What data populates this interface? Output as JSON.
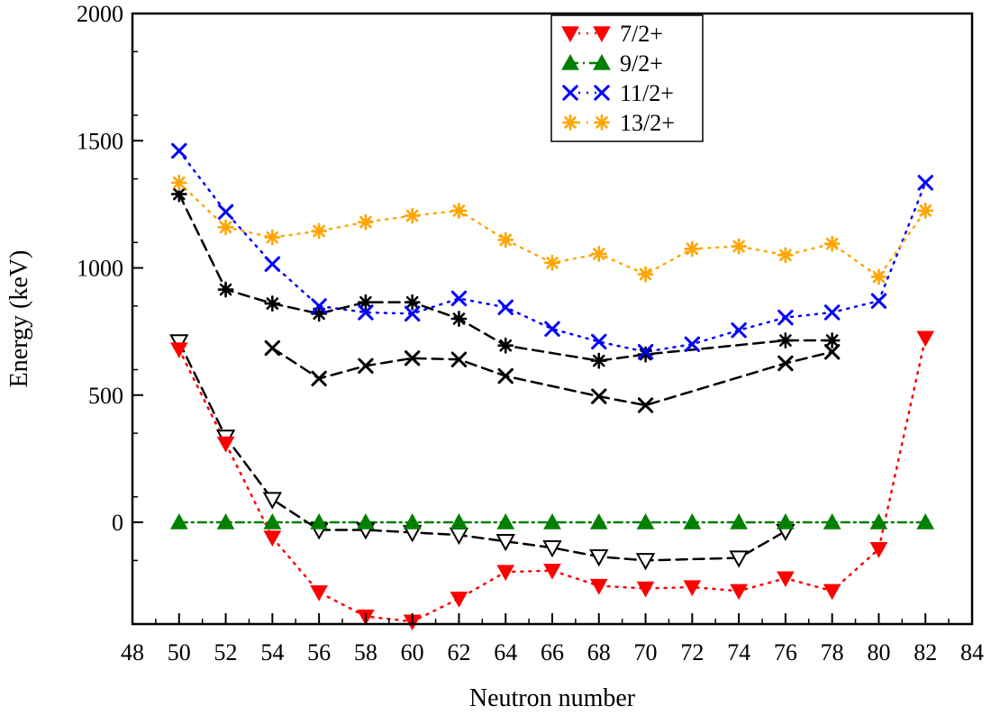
{
  "chart_data": {
    "type": "line",
    "title": "",
    "xlabel": "Neutron number",
    "ylabel": "Energy (keV)",
    "xlim": [
      48,
      84
    ],
    "ylim": [
      -400,
      2000
    ],
    "x_ticks": [
      48,
      50,
      52,
      54,
      56,
      58,
      60,
      62,
      64,
      66,
      68,
      70,
      72,
      74,
      76,
      78,
      80,
      82,
      84
    ],
    "y_ticks": [
      0,
      500,
      1000,
      1500,
      2000
    ],
    "legend_position": "top-center",
    "series": [
      {
        "name": "7/2+",
        "color": "#ff0000",
        "marker": "triangle-down-filled",
        "line": "dotted",
        "x": [
          50,
          52,
          54,
          56,
          58,
          60,
          62,
          64,
          66,
          68,
          70,
          72,
          74,
          76,
          78,
          80,
          82
        ],
        "y": [
          680,
          310,
          -60,
          -275,
          -370,
          -390,
          -300,
          -195,
          -190,
          -250,
          -260,
          -255,
          -270,
          -220,
          -270,
          -105,
          725
        ]
      },
      {
        "name": "9/2+",
        "color": "#008000",
        "marker": "triangle-up-filled",
        "line": "dash-dot",
        "x": [
          50,
          52,
          54,
          56,
          58,
          60,
          62,
          64,
          66,
          68,
          70,
          72,
          74,
          76,
          78,
          80,
          82
        ],
        "y": [
          0,
          0,
          0,
          0,
          0,
          0,
          0,
          0,
          0,
          0,
          0,
          0,
          0,
          0,
          0,
          0,
          0
        ]
      },
      {
        "name": "11/2+",
        "color": "#0000ff",
        "marker": "x",
        "line": "dotted",
        "x": [
          50,
          52,
          54,
          56,
          58,
          60,
          62,
          64,
          66,
          68,
          70,
          72,
          74,
          76,
          78,
          80,
          82
        ],
        "y": [
          1460,
          1220,
          1015,
          850,
          825,
          820,
          880,
          845,
          760,
          710,
          670,
          700,
          755,
          805,
          825,
          870,
          1335
        ]
      },
      {
        "name": "13/2+",
        "color": "#ffa500",
        "marker": "asterisk",
        "line": "dotted",
        "x": [
          50,
          52,
          54,
          56,
          58,
          60,
          62,
          64,
          66,
          68,
          70,
          72,
          74,
          76,
          78,
          80,
          82
        ],
        "y": [
          1335,
          1160,
          1120,
          1145,
          1180,
          1205,
          1225,
          1110,
          1020,
          1055,
          975,
          1075,
          1085,
          1050,
          1095,
          965,
          1225
        ]
      },
      {
        "name": "",
        "color": "#000000",
        "marker": "asterisk",
        "line": "dashed",
        "x": [
          50,
          52,
          54,
          56,
          58,
          60,
          62,
          64,
          68,
          70,
          76,
          78
        ],
        "y": [
          1290,
          915,
          860,
          820,
          865,
          865,
          800,
          695,
          635,
          660,
          715,
          715
        ]
      },
      {
        "name": "",
        "color": "#000000",
        "marker": "x",
        "line": "dashed",
        "x": [
          54,
          56,
          58,
          60,
          62,
          64,
          68,
          70,
          76,
          78
        ],
        "y": [
          685,
          565,
          615,
          645,
          640,
          575,
          495,
          460,
          625,
          670
        ]
      },
      {
        "name": "",
        "color": "#000000",
        "marker": "triangle-down-open",
        "line": "dashed",
        "x": [
          50,
          52,
          54,
          56,
          58,
          60,
          62,
          64,
          66,
          68,
          70,
          74,
          76
        ],
        "y": [
          710,
          335,
          90,
          -30,
          -30,
          -40,
          -50,
          -75,
          -100,
          -135,
          -150,
          -140,
          -35
        ]
      }
    ]
  }
}
